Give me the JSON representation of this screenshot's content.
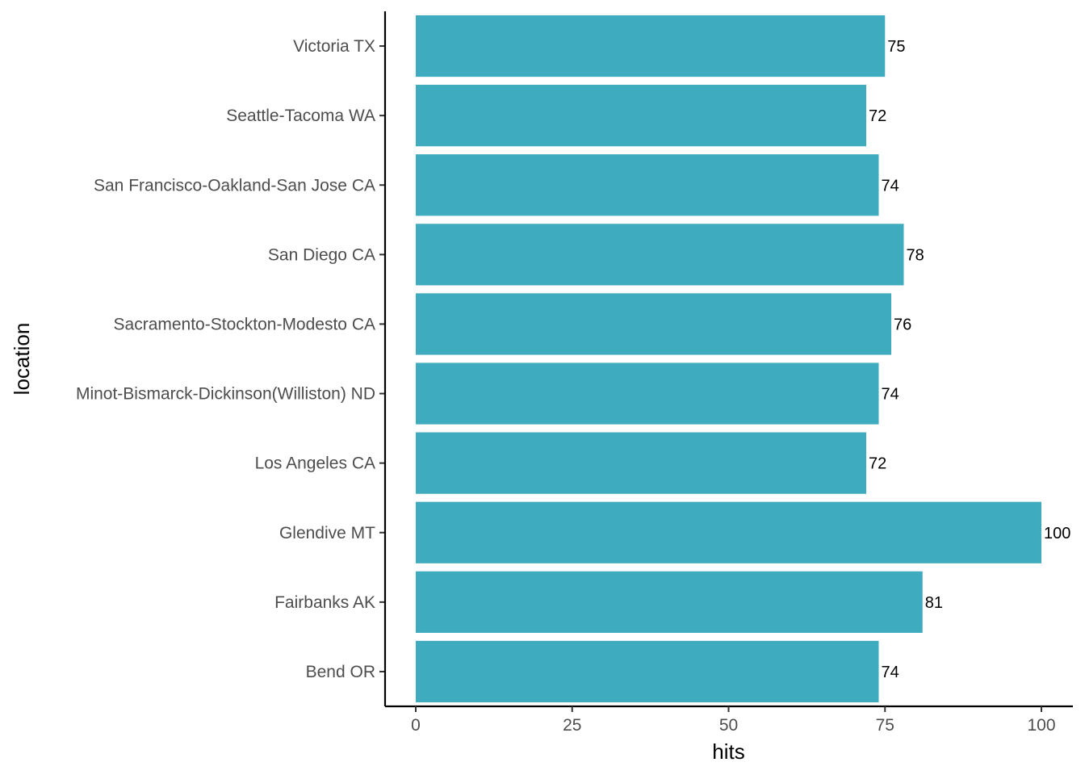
{
  "chart_data": {
    "type": "bar",
    "orientation": "horizontal",
    "categories": [
      "Victoria TX",
      "Seattle-Tacoma WA",
      "San Francisco-Oakland-San Jose CA",
      "San Diego CA",
      "Sacramento-Stockton-Modesto CA",
      "Minot-Bismarck-Dickinson(Williston) ND",
      "Los Angeles CA",
      "Glendive MT",
      "Fairbanks AK",
      "Bend OR"
    ],
    "values": [
      75,
      72,
      74,
      78,
      76,
      74,
      72,
      100,
      81,
      74
    ],
    "data_labels": [
      "75",
      "72",
      "74",
      "78",
      "76",
      "74",
      "72",
      "100",
      "81",
      "74"
    ],
    "xlabel": "hits",
    "ylabel": "location",
    "xlim": [
      0,
      100
    ],
    "x_ticks": [
      0,
      25,
      50,
      75,
      100
    ],
    "x_tick_labels": [
      "0",
      "25",
      "50",
      "75",
      "100"
    ],
    "grid": false,
    "bar_color": "#3fabbe"
  }
}
